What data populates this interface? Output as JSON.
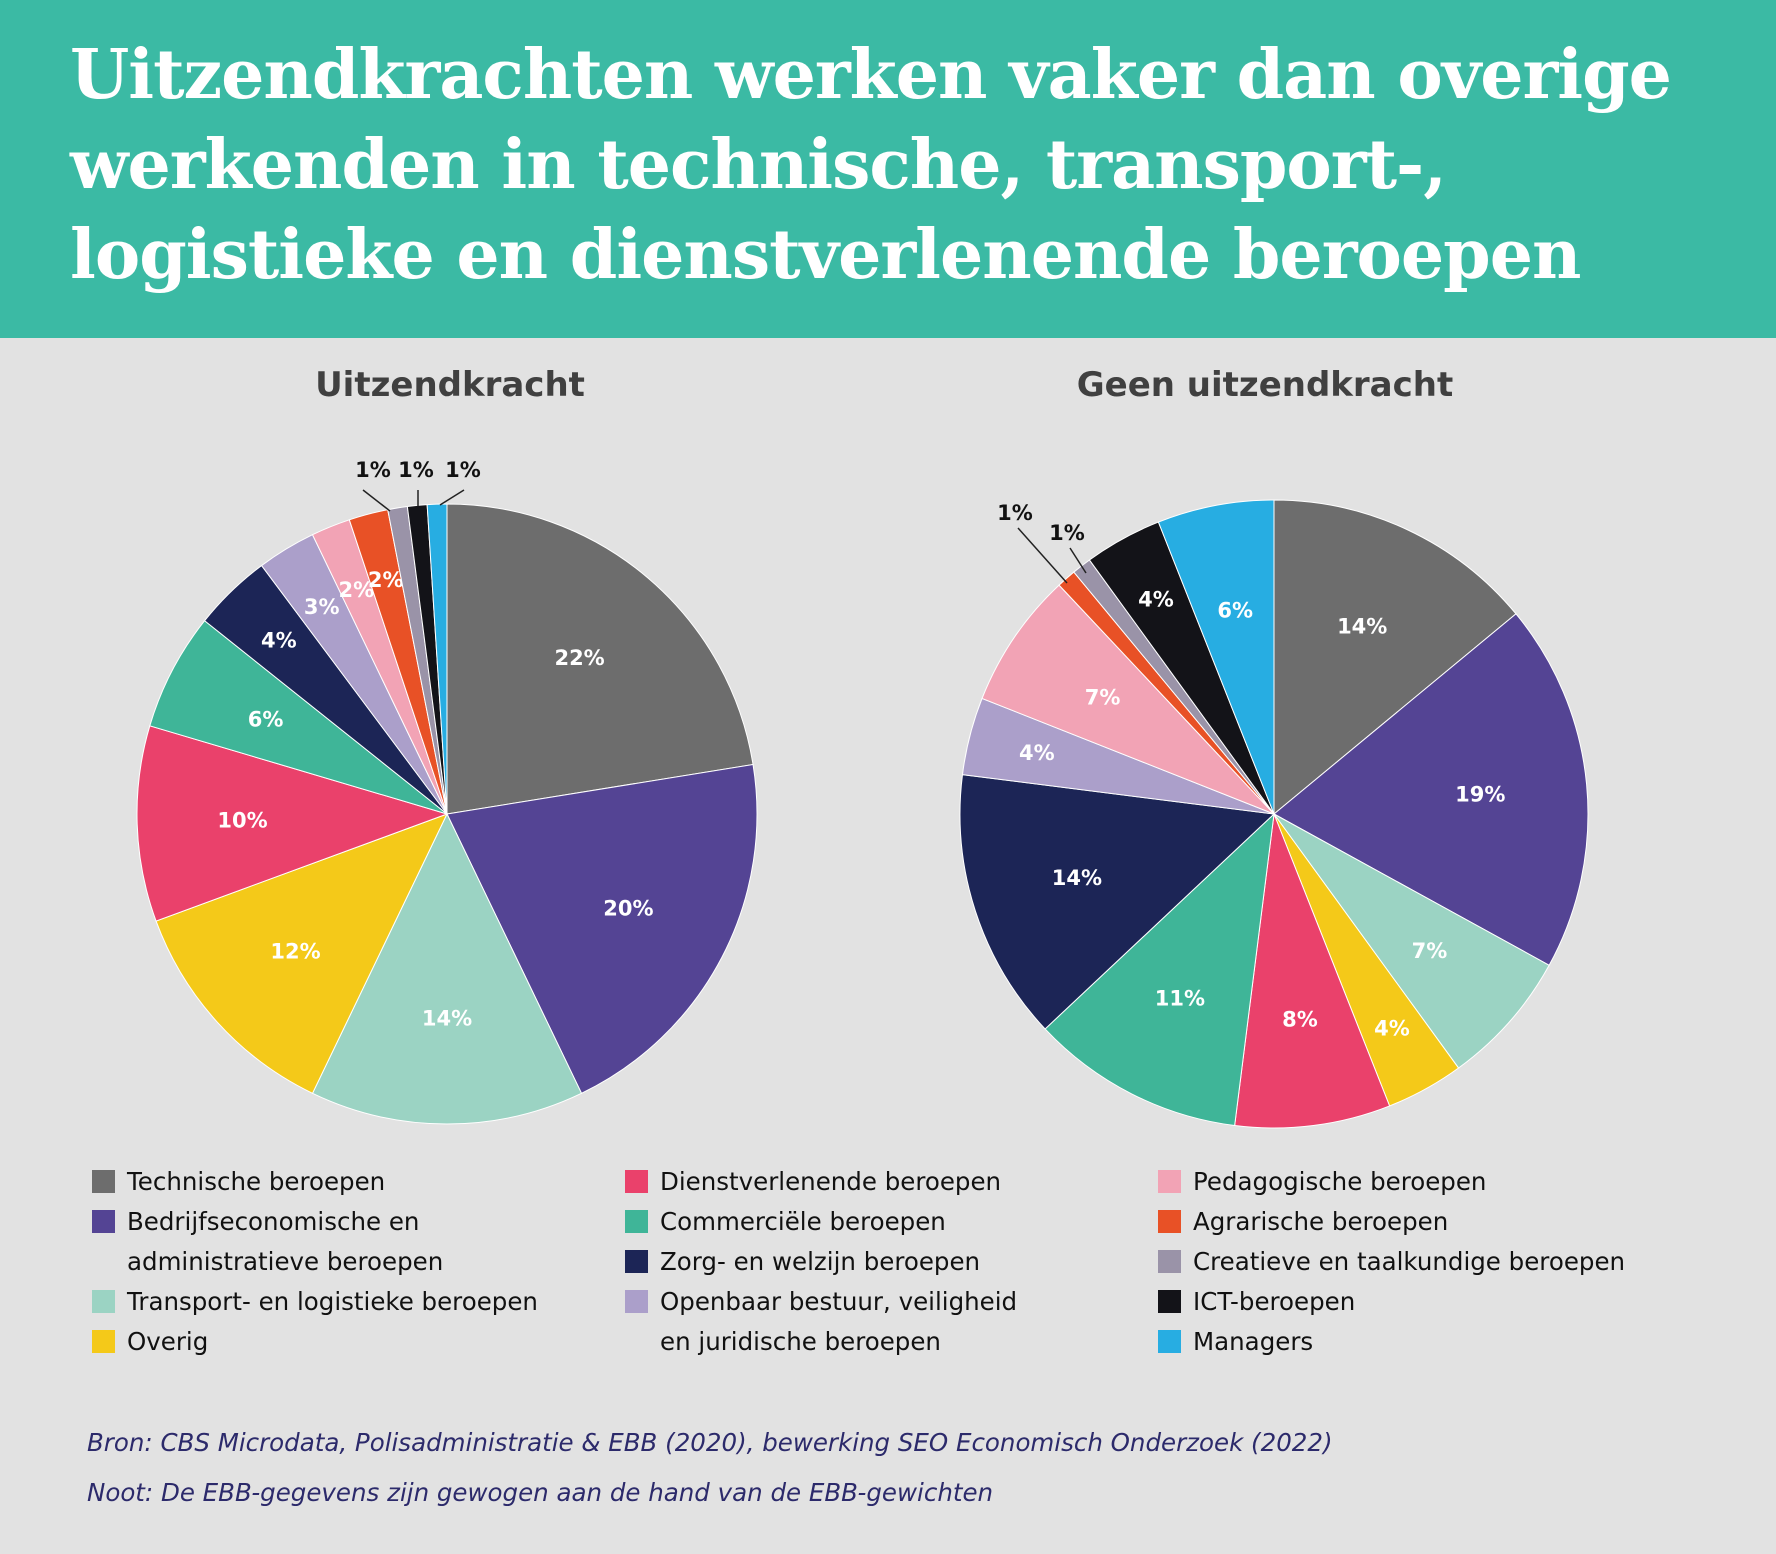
{
  "title": "Uitzendkrachten werken vaker dan overige werkenden in technische, transport-, logistieke en dienstverlenende beroepen",
  "categories": [
    {
      "label": "Technische beroepen",
      "color": "#6d6d6d"
    },
    {
      "label": "Bedrijfseconomische en\nadministratieve beroepen",
      "color": "#544494"
    },
    {
      "label": "Transport- en logistieke beroepen",
      "color": "#9bd3c3"
    },
    {
      "label": "Overig",
      "color": "#f4c919"
    },
    {
      "label": "Dienstverlenende beroepen",
      "color": "#ea416b"
    },
    {
      "label": "Commerciële beroepen",
      "color": "#3fb598"
    },
    {
      "label": "Zorg- en welzijn beroepen",
      "color": "#1c2556"
    },
    {
      "label": "Openbaar bestuur, veiligheid\nen juridische beroepen",
      "color": "#ab9fca"
    },
    {
      "label": "Pedagogische beroepen",
      "color": "#f2a3b5"
    },
    {
      "label": "Agrarische beroepen",
      "color": "#e85126"
    },
    {
      "label": "Creatieve en taalkundige beroepen",
      "color": "#9a93a8"
    },
    {
      "label": "ICT-beroepen",
      "color": "#131318"
    },
    {
      "label": "Managers",
      "color": "#27ade2"
    }
  ],
  "chart_data": [
    {
      "type": "pie",
      "title": "Uitzendkracht",
      "slices": [
        {
          "category": "Technische beroepen",
          "value": 22,
          "label": "22%"
        },
        {
          "category": "Bedrijfseconomische en administratieve beroepen",
          "value": 20,
          "label": "20%"
        },
        {
          "category": "Transport- en logistieke beroepen",
          "value": 14,
          "label": "14%"
        },
        {
          "category": "Overig",
          "value": 12,
          "label": "12%"
        },
        {
          "category": "Dienstverlenende beroepen",
          "value": 10,
          "label": "10%"
        },
        {
          "category": "Commerciële beroepen",
          "value": 6,
          "label": "6%"
        },
        {
          "category": "Zorg- en welzijn beroepen",
          "value": 4,
          "label": "4%"
        },
        {
          "category": "Openbaar bestuur, veiligheid en juridische beroepen",
          "value": 3,
          "label": "3%"
        },
        {
          "category": "Pedagogische beroepen",
          "value": 2,
          "label": "2%"
        },
        {
          "category": "Agrarische beroepen",
          "value": 2,
          "label": "2%"
        },
        {
          "category": "Creatieve en taalkundige beroepen",
          "value": 1,
          "label": "1%"
        },
        {
          "category": "ICT-beroepen",
          "value": 1,
          "label": "1%"
        },
        {
          "category": "Managers",
          "value": 1,
          "label": "1%"
        }
      ]
    },
    {
      "type": "pie",
      "title": "Geen uitzendkracht",
      "slices": [
        {
          "category": "Technische beroepen",
          "value": 14,
          "label": "14%"
        },
        {
          "category": "Bedrijfseconomische en administratieve beroepen",
          "value": 19,
          "label": "19%"
        },
        {
          "category": "Transport- en logistieke beroepen",
          "value": 7,
          "label": "7%"
        },
        {
          "category": "Overig",
          "value": 4,
          "label": "4%"
        },
        {
          "category": "Dienstverlenende beroepen",
          "value": 8,
          "label": "8%"
        },
        {
          "category": "Commerciële beroepen",
          "value": 11,
          "label": "11%"
        },
        {
          "category": "Zorg- en welzijn beroepen",
          "value": 14,
          "label": "14%"
        },
        {
          "category": "Openbaar bestuur, veiligheid en juridische beroepen",
          "value": 4,
          "label": "4%"
        },
        {
          "category": "Pedagogische beroepen",
          "value": 7,
          "label": "7%"
        },
        {
          "category": "Agrarische beroepen",
          "value": 1,
          "label": "1%"
        },
        {
          "category": "Creatieve en taalkundige beroepen",
          "value": 1,
          "label": "1%"
        },
        {
          "category": "ICT-beroepen",
          "value": 4,
          "label": "4%"
        },
        {
          "category": "Managers",
          "value": 6,
          "label": "6%"
        }
      ]
    }
  ],
  "footer": {
    "source": "Bron: CBS Microdata, Polisadministratie & EBB (2020), bewerking SEO Economisch Onderzoek (2022)",
    "note": "Noot: De EBB-gegevens zijn gewogen aan de hand van de EBB-gewichten"
  }
}
